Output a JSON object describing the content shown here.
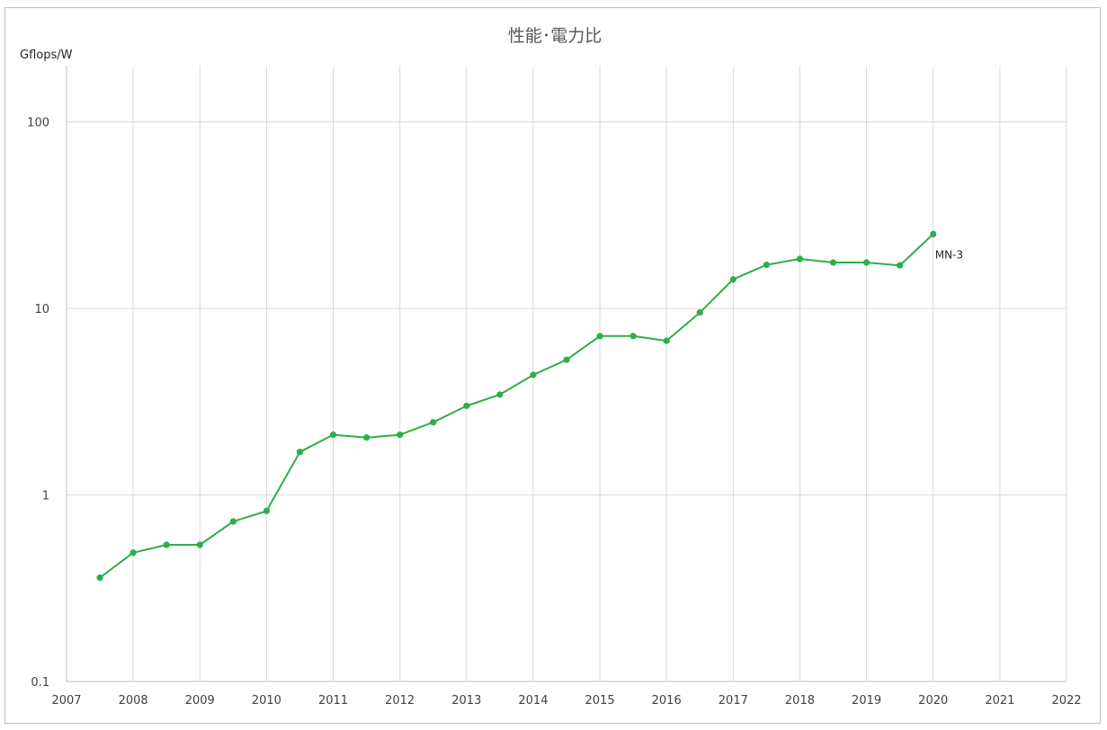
{
  "chart_data": {
    "type": "line",
    "title": "性能･電力比",
    "ylabel": "Gflops/W",
    "xlabel": "",
    "yscale": "log",
    "ylim": [
      0.1,
      200
    ],
    "xlim": [
      2007,
      2022
    ],
    "x_ticks": [
      "2007",
      "2008",
      "2009",
      "2010",
      "2011",
      "2012",
      "2013",
      "2014",
      "2015",
      "2016",
      "2017",
      "2018",
      "2019",
      "2020",
      "2021",
      "2022"
    ],
    "y_ticks": [
      "0.1",
      "1",
      "10",
      "100"
    ],
    "grid": true,
    "colors": {
      "line": "#2eae4a",
      "grid": "#d9d9d9",
      "frame": "#bfbfbf"
    },
    "series": [
      {
        "x": [
          2007.5,
          2008.0,
          2008.5,
          2009.0,
          2009.5,
          2010.0,
          2010.5,
          2011.0,
          2011.5,
          2012.0,
          2012.5,
          2013.0,
          2013.5,
          2014.0,
          2014.5,
          2015.0,
          2015.5,
          2016.0,
          2016.5,
          2017.0,
          2017.5,
          2018.0,
          2018.5,
          2019.0,
          2019.5,
          2020.0
        ],
        "values": [
          0.36,
          0.49,
          0.54,
          0.54,
          0.72,
          0.82,
          1.7,
          2.1,
          2.03,
          2.1,
          2.45,
          3.0,
          3.45,
          4.4,
          5.3,
          7.1,
          7.1,
          6.7,
          9.5,
          14.3,
          17.1,
          18.4,
          17.6,
          17.6,
          17.0,
          25.0
        ]
      }
    ],
    "annotations": [
      {
        "text": "MN-3",
        "x": 2020.0,
        "y": 25.0
      }
    ]
  }
}
